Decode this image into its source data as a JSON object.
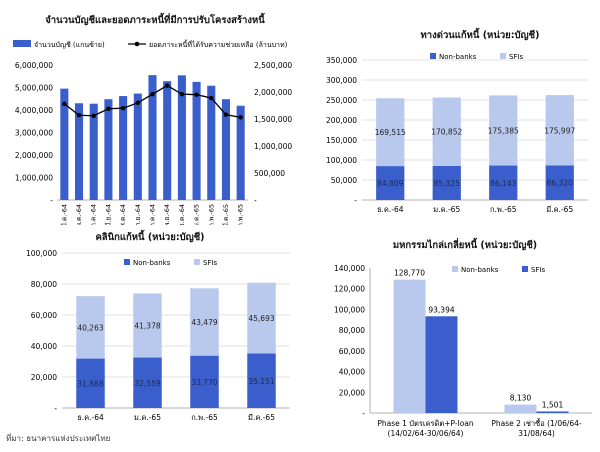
{
  "source": "ที่มา: ธนาคารแห่งประเทศไทย",
  "colors": {
    "dark_blue": "#3a5fcd",
    "light_blue": "#b9c9ee",
    "line": "#000000",
    "axis": "#9a9a9a",
    "grid": "#d9d9d9"
  },
  "chart_data": [
    {
      "type": "bar",
      "title": "จำนวนบัญชีและยอดภาระหนี้ที่มีการปรับโครงสร้างหนี้",
      "categories": [
        "มี.ค.-64",
        "พ.ค.-64",
        "ก.ค.-64",
        "มี.ย.-64",
        "ส.ค.-64",
        "ก.ย.-64",
        "ต.ค.-64",
        "พ.ย.-64",
        "ธ.ค.-64",
        "ม.ค.-65",
        "ก.พ.-65",
        "มี.ค.-65",
        "ก.พ.-65"
      ],
      "series": [
        {
          "name": "จำนวนบัญชี (แกนซ้าย)",
          "axis": "left",
          "kind": "bar",
          "values": [
            4950000,
            4300000,
            4280000,
            4480000,
            4620000,
            4730000,
            5550000,
            5280000,
            5540000,
            5250000,
            5080000,
            4480000,
            4190000
          ]
        },
        {
          "name": "ยอดภาระหนี้ที่ได้รับความช่วยเหลือ (ล้านบาท)",
          "axis": "right",
          "kind": "line",
          "values": [
            1780000,
            1570000,
            1560000,
            1690000,
            1700000,
            1800000,
            1960000,
            2120000,
            1960000,
            1950000,
            1890000,
            1580000,
            1530000
          ]
        }
      ],
      "left_ticks": [
        "6,000,000",
        "5,000,000",
        "4,000,000",
        "3,000,000",
        "2,000,000",
        "1,000,000",
        "-"
      ],
      "right_ticks": [
        "2,500,000",
        "2,000,000",
        "1,500,000",
        "1,000,000",
        "500,000",
        "-"
      ],
      "ylim_left": [
        0,
        6000000
      ],
      "ylim_right": [
        0,
        2500000
      ],
      "legend": "top"
    },
    {
      "type": "bar",
      "stacked": true,
      "title": "ทางด่วนแก้หนี้ (หน่วย:บัญชี)",
      "categories": [
        "ธ.ค.-64",
        "ม.ค.-65",
        "ก.พ.-65",
        "มี.ค.-65"
      ],
      "series": [
        {
          "name": "Non-banks",
          "values": [
            84809,
            85325,
            86143,
            86320
          ],
          "labels": [
            "84,809",
            "85,325",
            "86,143",
            "86,320"
          ]
        },
        {
          "name": "SFIs",
          "values": [
            169515,
            170852,
            175385,
            175997
          ],
          "labels": [
            "169,515",
            "170,852",
            "175,385",
            "175,997"
          ]
        }
      ],
      "ticks": [
        "350,000",
        "300,000",
        "250,000",
        "200,000",
        "150,000",
        "100,000",
        "50,000",
        "-"
      ],
      "ylim": [
        0,
        350000
      ],
      "legend": "top"
    },
    {
      "type": "bar",
      "stacked": true,
      "title": "คลินิกแก้หนี้ (หน่วย:บัญชี)",
      "categories": [
        "ธ.ค.-64",
        "ม.ค.-65",
        "ก.พ.-65",
        "มี.ค.-65"
      ],
      "series": [
        {
          "name": "Non-banks",
          "values": [
            31888,
            32559,
            33770,
            35151
          ],
          "labels": [
            "31,888",
            "32,559",
            "33,770",
            "35,151"
          ]
        },
        {
          "name": "SFIs",
          "values": [
            40263,
            41378,
            43479,
            45693
          ],
          "labels": [
            "40,263",
            "41,378",
            "43,479",
            "45,693"
          ]
        }
      ],
      "ticks": [
        "100,000",
        "80,000",
        "60,000",
        "40,000",
        "20,000",
        "-"
      ],
      "ylim": [
        0,
        100000
      ],
      "legend": "top"
    },
    {
      "type": "bar",
      "title": "มหกรรมไกล่เกลี่ยหนี้ (หน่วย:บัญชี)",
      "categories": [
        "Phase 1 บัตรเครดิต+P-loan (14/02/64-30/06/64)",
        "Phase 2 เช่าซื้อ (1/06/64-31/08/64)"
      ],
      "category_lines": [
        [
          "Phase 1 บัตรเครดิต+P-loan",
          "(14/02/64-30/06/64)"
        ],
        [
          "Phase 2 เช่าซื้อ (1/06/64-",
          "31/08/64)"
        ]
      ],
      "series": [
        {
          "name": "Non-banks",
          "values": [
            128770,
            8130
          ],
          "labels": [
            "128,770",
            "8,130"
          ]
        },
        {
          "name": "SFIs",
          "values": [
            93394,
            1501
          ],
          "labels": [
            "93,394",
            "1,501"
          ]
        }
      ],
      "ticks": [
        "140,000",
        "120,000",
        "100,000",
        "80,000",
        "60,000",
        "40,000",
        "20,000",
        "-"
      ],
      "ylim": [
        0,
        140000
      ],
      "legend": "top"
    }
  ]
}
